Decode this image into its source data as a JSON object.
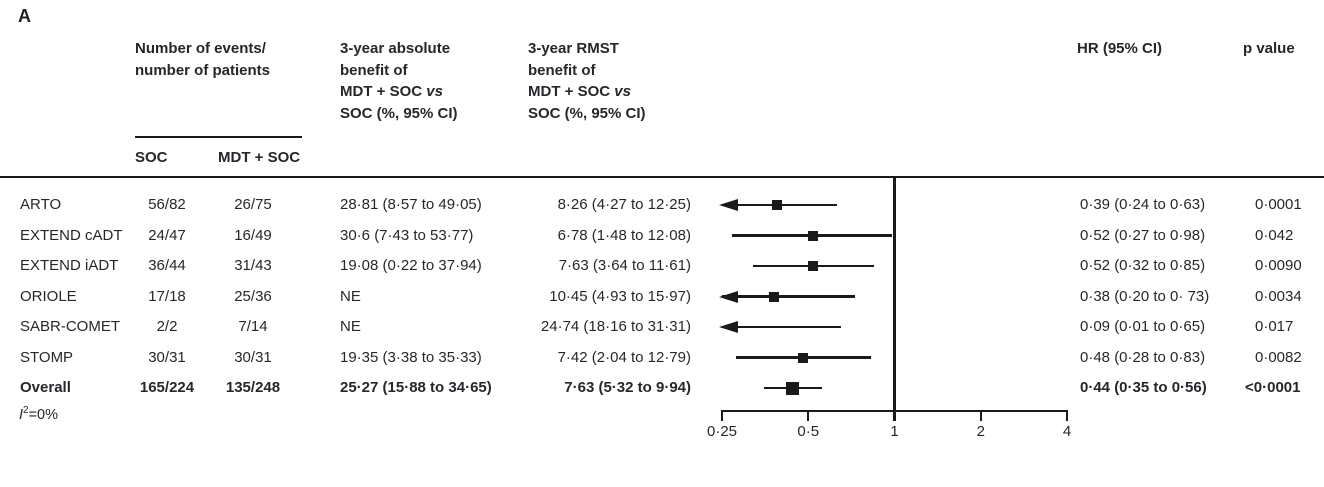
{
  "panel_label": "A",
  "columns": {
    "events": {
      "line1": "Number of events/",
      "line2": "number of patients"
    },
    "soc_label": "SOC",
    "mdt_label": "MDT + SOC",
    "abs": {
      "line1": "3-year absolute",
      "line2": "benefit of",
      "line3_main": "MDT + SOC ",
      "line3_italic": "vs",
      "line4": "SOC (%, 95% CI)"
    },
    "rmst": {
      "line1": "3-year RMST",
      "line2": "benefit of",
      "line3_main": "MDT + SOC ",
      "line3_italic": "vs",
      "line4": "SOC (%, 95% CI)"
    },
    "hr": "HR (95% CI)",
    "p": "p value"
  },
  "heterogeneity": {
    "base": "I",
    "sup": "2",
    "rest": "=0%"
  },
  "chart_data": {
    "type": "forest",
    "x_scale": "log2",
    "x_range": [
      0.25,
      4
    ],
    "ref_line": 1,
    "x_ticks": [
      0.25,
      0.5,
      1,
      2,
      4
    ],
    "x_tick_labels": [
      "0·25",
      "0·5",
      "1",
      "2",
      "4"
    ],
    "studies": [
      {
        "study": "ARTO",
        "soc": "56/82",
        "mdt": "26/75",
        "abs_benefit": "28·81 (8·57 to 49·05)",
        "rmst_benefit": "8·26 (4·27 to 12·25)",
        "hr_ci": "0·39 (0·24 to 0·63)",
        "p": "0·0001",
        "hr": 0.39,
        "ci_low": 0.24,
        "ci_high": 0.63,
        "left_arrow": true,
        "bold": false
      },
      {
        "study": "EXTEND cADT",
        "soc": "24/47",
        "mdt": "16/49",
        "abs_benefit": "30·6 (7·43 to 53·77)",
        "rmst_benefit": "6·78 (1·48 to 12·08)",
        "hr_ci": "0·52 (0·27 to 0·98)",
        "p": "0·042",
        "hr": 0.52,
        "ci_low": 0.27,
        "ci_high": 0.98,
        "left_arrow": false,
        "bold": false
      },
      {
        "study": "EXTEND iADT",
        "soc": "36/44",
        "mdt": "31/43",
        "abs_benefit": "19·08 (0·22 to 37·94)",
        "rmst_benefit": "7·63 (3·64 to 11·61)",
        "hr_ci": "0·52 (0·32 to 0·85)",
        "p": "0·0090",
        "hr": 0.52,
        "ci_low": 0.32,
        "ci_high": 0.85,
        "left_arrow": false,
        "bold": false
      },
      {
        "study": "ORIOLE",
        "soc": "17/18",
        "mdt": "25/36",
        "abs_benefit": "NE",
        "rmst_benefit": "10·45 (4·93 to 15·97)",
        "hr_ci": "0·38 (0·20 to 0· 73)",
        "p": "0·0034",
        "hr": 0.38,
        "ci_low": 0.2,
        "ci_high": 0.73,
        "left_arrow": true,
        "bold": false
      },
      {
        "study": "SABR-COMET",
        "soc": "2/2",
        "mdt": "7/14",
        "abs_benefit": "NE",
        "rmst_benefit": "24·74 (18·16 to 31·31)",
        "hr_ci": "0·09 (0·01 to 0·65)",
        "p": "0·017",
        "hr": 0.09,
        "ci_low": 0.01,
        "ci_high": 0.65,
        "left_arrow": true,
        "bold": false
      },
      {
        "study": "STOMP",
        "soc": "30/31",
        "mdt": "30/31",
        "abs_benefit": "19·35 (3·38 to 35·33)",
        "rmst_benefit": "7·42 (2·04 to 12·79)",
        "hr_ci": "0·48 (0·28 to 0·83)",
        "p": "0·0082",
        "hr": 0.48,
        "ci_low": 0.28,
        "ci_high": 0.83,
        "left_arrow": false,
        "bold": false
      },
      {
        "study": "Overall",
        "soc": "165/224",
        "mdt": "135/248",
        "abs_benefit": "25·27 (15·88 to 34·65)",
        "rmst_benefit": "7·63 (5·32 to 9·94)",
        "hr_ci": "0·44 (0·35 to 0·56)",
        "p": "<0·0001",
        "hr": 0.44,
        "ci_low": 0.35,
        "ci_high": 0.56,
        "left_arrow": false,
        "bold": true
      }
    ]
  }
}
